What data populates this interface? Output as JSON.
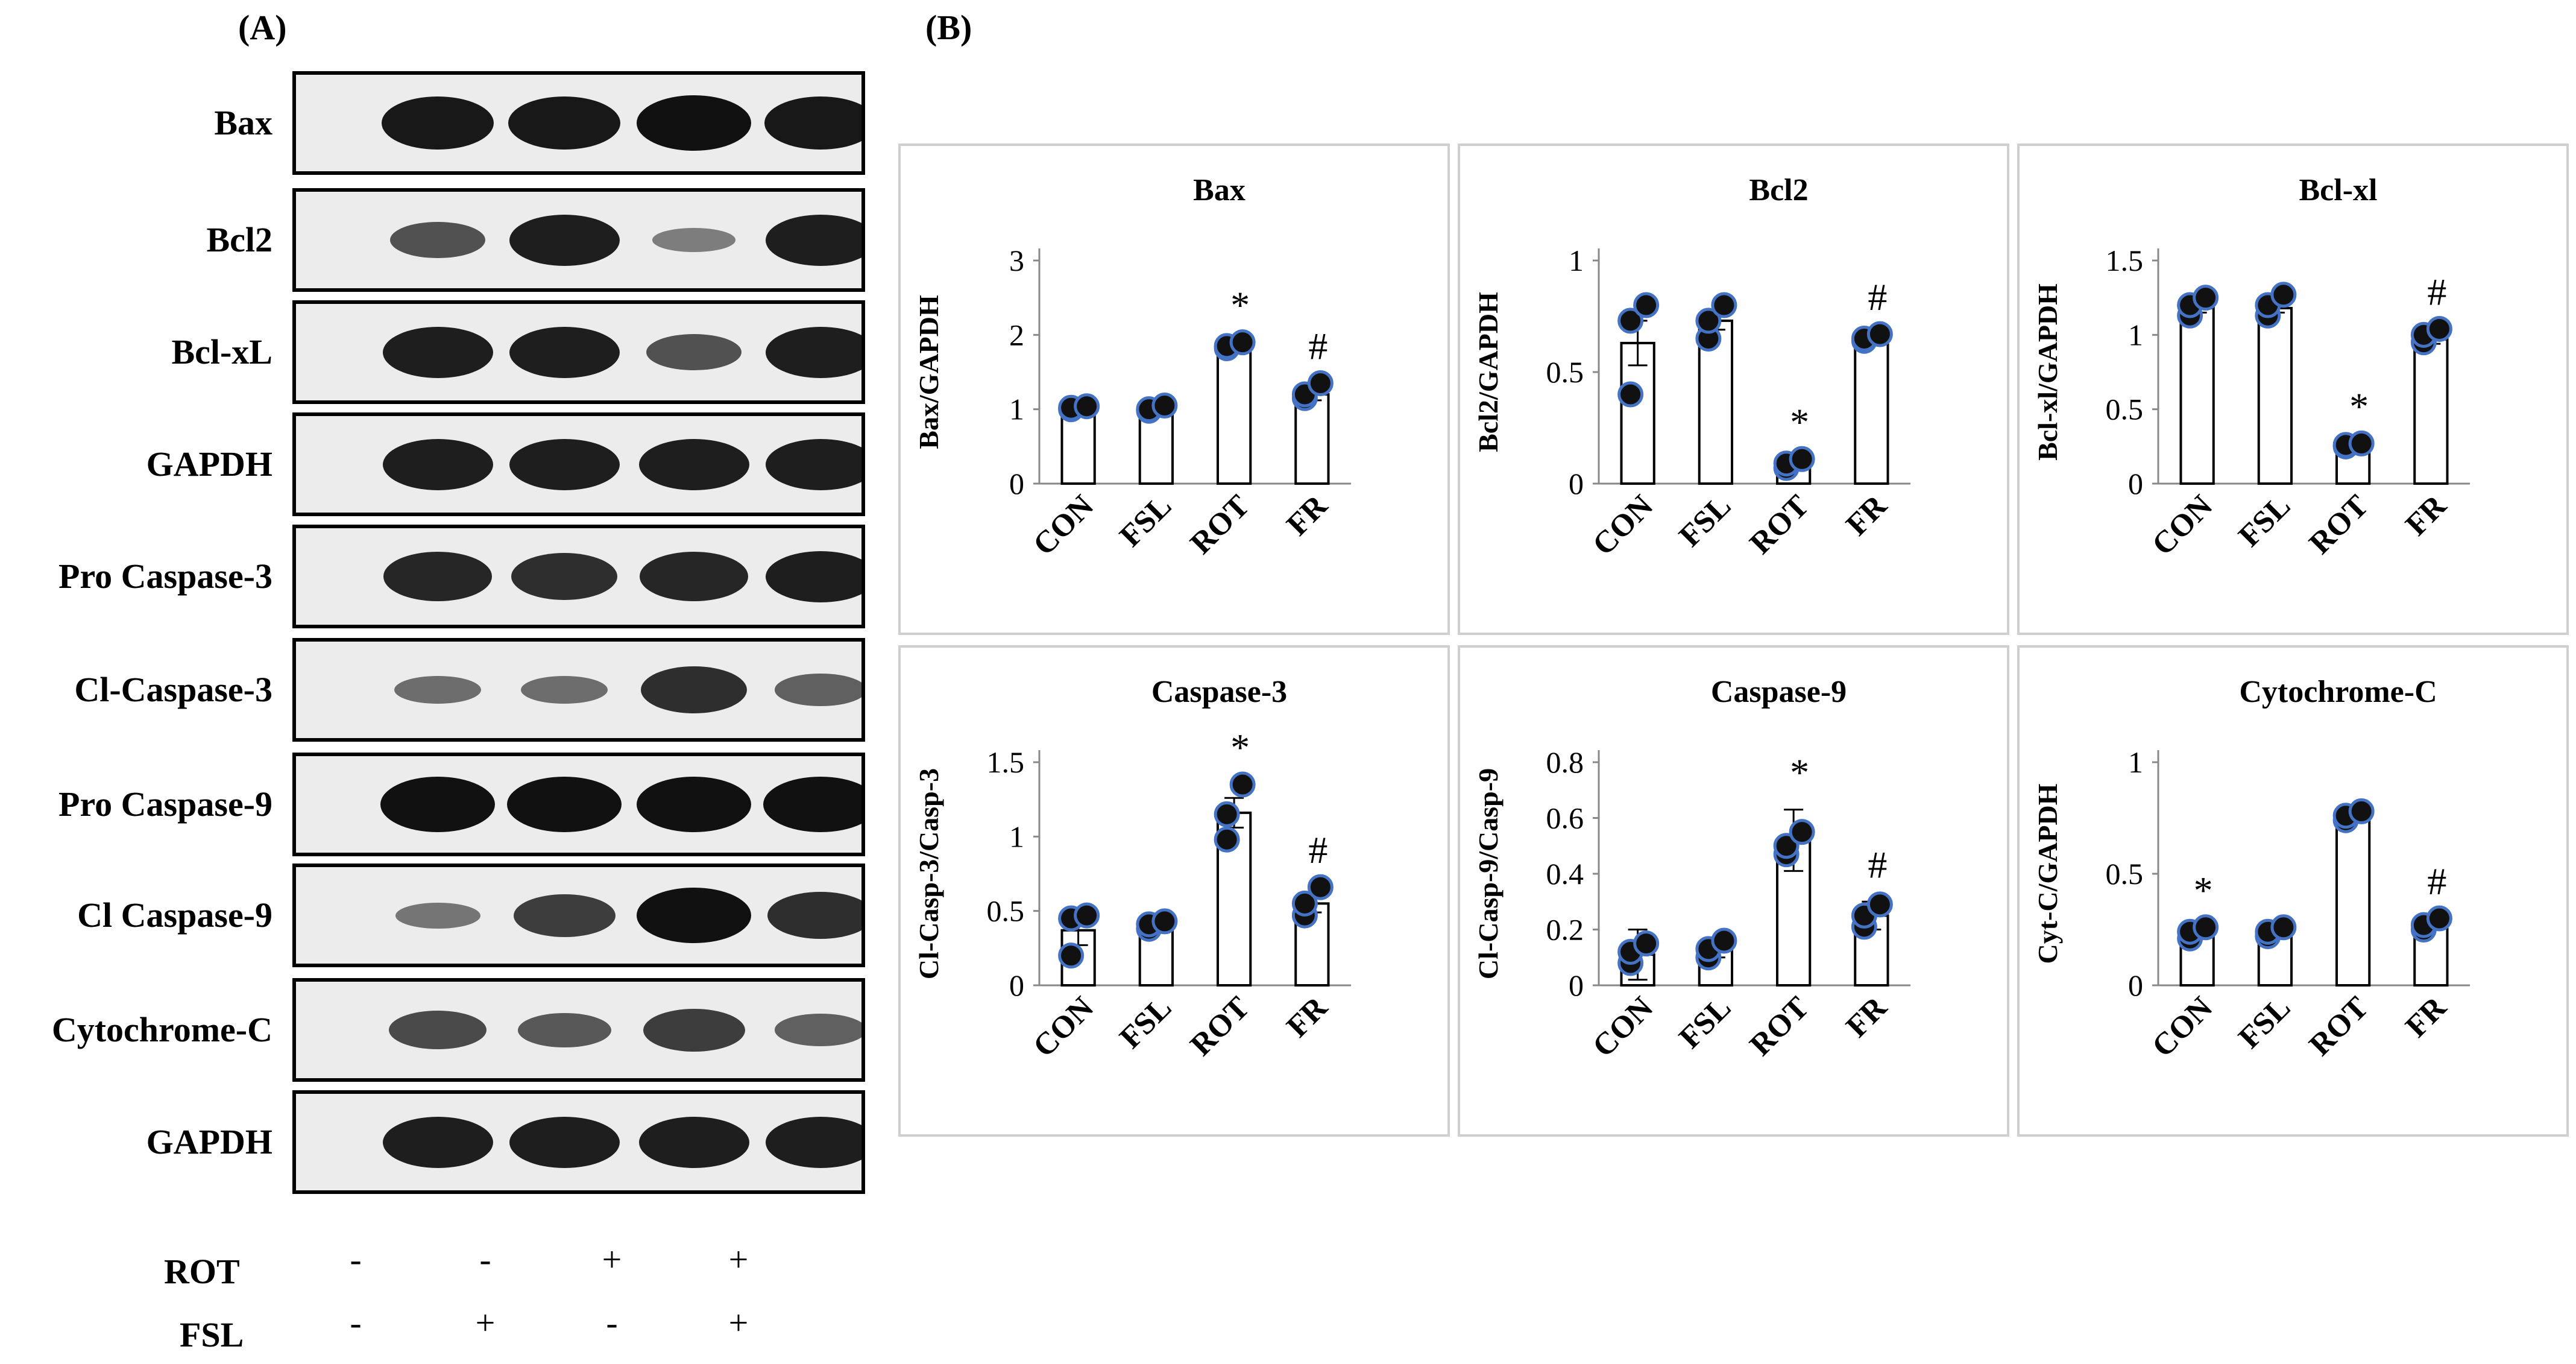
{
  "panel_a_label": "(A)",
  "panel_b_label": "(B)",
  "blots": [
    {
      "label": "Bax",
      "intensities": [
        0.95,
        0.95,
        1.0,
        0.95
      ]
    },
    {
      "label": "Bcl2",
      "intensities": [
        0.55,
        0.9,
        0.25,
        0.9
      ]
    },
    {
      "label": "Bcl-xL",
      "intensities": [
        0.9,
        0.9,
        0.55,
        0.9
      ]
    },
    {
      "label": "GAPDH",
      "intensities": [
        0.9,
        0.9,
        0.9,
        0.9
      ]
    },
    {
      "label": "Pro Caspase-3",
      "intensities": [
        0.85,
        0.8,
        0.85,
        0.9
      ]
    },
    {
      "label": "Cl-Caspase-3",
      "intensities": [
        0.35,
        0.35,
        0.8,
        0.45
      ]
    },
    {
      "label": "Pro Caspase-9",
      "intensities": [
        1.0,
        1.0,
        1.0,
        1.0
      ]
    },
    {
      "label": "Cl Caspase-9",
      "intensities": [
        0.3,
        0.7,
        1.0,
        0.8
      ]
    },
    {
      "label": "Cytochrome-C",
      "intensities": [
        0.6,
        0.5,
        0.7,
        0.45
      ]
    },
    {
      "label": "GAPDH",
      "intensities": [
        0.9,
        0.9,
        0.9,
        0.9
      ]
    }
  ],
  "treatments": {
    "rows": [
      {
        "label": "ROT",
        "signs": [
          "-",
          "-",
          "+",
          "+"
        ]
      },
      {
        "label": "FSL",
        "signs": [
          "-",
          "+",
          "-",
          "+"
        ]
      }
    ]
  },
  "colors": {
    "point_fill": "#111111",
    "point_edge": "#4472c4",
    "bar_edge": "#000000",
    "panel_border": "#cfcfcf"
  },
  "chart_data": [
    {
      "type": "bar",
      "title": "Bax",
      "ylabel": "Bax/GAPDH",
      "categories": [
        "CON",
        "FSL",
        "ROT",
        "FR"
      ],
      "values": [
        1.0,
        1.0,
        1.85,
        1.2
      ],
      "errors": [
        0.03,
        0.03,
        0.05,
        0.08
      ],
      "ylim": [
        0,
        3
      ],
      "yticks": [
        0,
        1,
        2,
        3
      ],
      "ytick_labels": [
        "0",
        "1",
        "2",
        "3"
      ],
      "points": [
        [
          1.0,
          1.02,
          1.04
        ],
        [
          0.98,
          1.0,
          1.05
        ],
        [
          1.82,
          1.85,
          1.9
        ],
        [
          1.15,
          1.2,
          1.35
        ]
      ],
      "annotations": [
        "",
        "",
        "*",
        "#"
      ]
    },
    {
      "type": "bar",
      "title": "Bcl2",
      "ylabel": "Bcl2/GAPDH",
      "categories": [
        "CON",
        "FSL",
        "ROT",
        "FR"
      ],
      "values": [
        0.63,
        0.73,
        0.09,
        0.65
      ],
      "errors": [
        0.1,
        0.04,
        0.01,
        0.01
      ],
      "ylim": [
        0,
        1
      ],
      "yticks": [
        0,
        0.5,
        1
      ],
      "ytick_labels": [
        "0",
        "0.5",
        "1"
      ],
      "points": [
        [
          0.4,
          0.73,
          0.8
        ],
        [
          0.65,
          0.73,
          0.8
        ],
        [
          0.07,
          0.09,
          0.11
        ],
        [
          0.64,
          0.65,
          0.67
        ]
      ],
      "annotations": [
        "",
        "",
        "*",
        "#"
      ]
    },
    {
      "type": "bar",
      "title": "Bcl-xl",
      "ylabel": "Bcl-xl/GAPDH",
      "categories": [
        "CON",
        "FSL",
        "ROT",
        "FR"
      ],
      "values": [
        1.18,
        1.18,
        0.26,
        0.97
      ],
      "errors": [
        0.03,
        0.03,
        0.01,
        0.03
      ],
      "ylim": [
        0,
        1.5
      ],
      "yticks": [
        0,
        0.5,
        1,
        1.5
      ],
      "ytick_labels": [
        "0",
        "0.5",
        "1",
        "1.5"
      ],
      "points": [
        [
          1.13,
          1.2,
          1.25
        ],
        [
          1.13,
          1.2,
          1.27
        ],
        [
          0.25,
          0.26,
          0.27
        ],
        [
          0.95,
          1.0,
          1.04
        ]
      ],
      "annotations": [
        "",
        "",
        "*",
        "#"
      ]
    },
    {
      "type": "bar",
      "title": "Caspase-3",
      "ylabel": "Cl-Casp-3/Casp-3",
      "categories": [
        "CON",
        "FSL",
        "ROT",
        "FR"
      ],
      "values": [
        0.37,
        0.41,
        1.16,
        0.55
      ],
      "errors": [
        0.1,
        0.03,
        0.1,
        0.06
      ],
      "ylim": [
        0,
        1.5
      ],
      "yticks": [
        0,
        0.5,
        1,
        1.5
      ],
      "ytick_labels": [
        "0",
        "0.5",
        "1",
        "1.5"
      ],
      "points": [
        [
          0.2,
          0.45,
          0.47
        ],
        [
          0.38,
          0.41,
          0.43
        ],
        [
          0.98,
          1.15,
          1.35
        ],
        [
          0.47,
          0.55,
          0.66
        ]
      ],
      "annotations": [
        "",
        "",
        "*",
        "#"
      ]
    },
    {
      "type": "bar",
      "title": "Caspase-9",
      "ylabel": "Cl-Casp-9/Casp-9",
      "categories": [
        "CON",
        "FSL",
        "ROT",
        "FR"
      ],
      "values": [
        0.11,
        0.13,
        0.52,
        0.25
      ],
      "errors": [
        0.09,
        0.03,
        0.11,
        0.05
      ],
      "ylim": [
        0,
        0.8
      ],
      "yticks": [
        0,
        0.2,
        0.4,
        0.6,
        0.8
      ],
      "ytick_labels": [
        "0",
        "0.2",
        "0.4",
        "0.6",
        "0.8"
      ],
      "points": [
        [
          0.08,
          0.12,
          0.15
        ],
        [
          0.1,
          0.13,
          0.16
        ],
        [
          0.47,
          0.5,
          0.55
        ],
        [
          0.21,
          0.25,
          0.29
        ]
      ],
      "annotations": [
        "",
        "",
        "*",
        "#"
      ]
    },
    {
      "type": "bar",
      "title": "Cytochrome-C",
      "ylabel": "Cyt-C/GAPDH",
      "categories": [
        "CON",
        "FSL",
        "ROT",
        "FR"
      ],
      "values": [
        0.24,
        0.24,
        0.76,
        0.27
      ],
      "errors": [
        0.02,
        0.02,
        0.02,
        0.02
      ],
      "ylim": [
        0,
        1
      ],
      "yticks": [
        0,
        0.5,
        1
      ],
      "ytick_labels": [
        "0",
        "0.5",
        "1"
      ],
      "points": [
        [
          0.21,
          0.24,
          0.26
        ],
        [
          0.22,
          0.24,
          0.26
        ],
        [
          0.74,
          0.76,
          0.78
        ],
        [
          0.25,
          0.27,
          0.3
        ]
      ],
      "annotations": [
        "*",
        "",
        "",
        "#"
      ]
    }
  ]
}
